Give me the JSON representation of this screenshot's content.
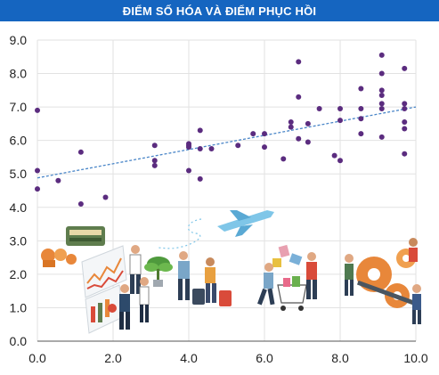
{
  "chart_data": {
    "type": "scatter",
    "title": "ĐIỂM SỐ HÓA VÀ ĐIỂM PHỤC HỒI",
    "xlabel": "",
    "ylabel": "",
    "xlim": [
      0,
      10
    ],
    "ylim": [
      0,
      9
    ],
    "x_ticks": [
      "0.0",
      "2.0",
      "4.0",
      "6.0",
      "8.0",
      "10.0"
    ],
    "y_ticks": [
      "0.0",
      "1.0",
      "2.0",
      "3.0",
      "4.0",
      "5.0",
      "6.0",
      "7.0",
      "8.0",
      "9.0"
    ],
    "grid": true,
    "trendline": {
      "style": "dashed",
      "color": "#4a86c8",
      "x": [
        0,
        10
      ],
      "y": [
        4.88,
        7.0
      ]
    },
    "series": [
      {
        "color": "#5b2c7f",
        "points": [
          [
            0.0,
            6.9
          ],
          [
            0.0,
            5.1
          ],
          [
            0.0,
            4.55
          ],
          [
            0.55,
            4.8
          ],
          [
            1.15,
            5.65
          ],
          [
            1.15,
            4.1
          ],
          [
            1.8,
            4.3
          ],
          [
            3.1,
            5.85
          ],
          [
            3.1,
            5.4
          ],
          [
            3.1,
            5.25
          ],
          [
            4.0,
            5.9
          ],
          [
            4.0,
            5.85
          ],
          [
            4.0,
            5.8
          ],
          [
            4.0,
            5.1
          ],
          [
            4.3,
            6.3
          ],
          [
            4.3,
            5.75
          ],
          [
            4.3,
            4.85
          ],
          [
            4.6,
            5.75
          ],
          [
            5.3,
            5.85
          ],
          [
            5.7,
            6.2
          ],
          [
            6.0,
            6.2
          ],
          [
            6.0,
            5.8
          ],
          [
            6.5,
            5.45
          ],
          [
            6.7,
            6.55
          ],
          [
            6.7,
            6.4
          ],
          [
            6.9,
            8.35
          ],
          [
            6.9,
            7.3
          ],
          [
            6.9,
            6.05
          ],
          [
            7.15,
            6.5
          ],
          [
            7.15,
            5.95
          ],
          [
            7.45,
            6.95
          ],
          [
            7.85,
            5.55
          ],
          [
            8.0,
            6.95
          ],
          [
            8.0,
            6.6
          ],
          [
            8.0,
            5.4
          ],
          [
            8.55,
            7.55
          ],
          [
            8.55,
            6.95
          ],
          [
            8.55,
            6.65
          ],
          [
            8.55,
            6.2
          ],
          [
            9.1,
            8.55
          ],
          [
            9.1,
            8.0
          ],
          [
            9.1,
            7.5
          ],
          [
            9.1,
            7.35
          ],
          [
            9.1,
            7.1
          ],
          [
            9.1,
            6.95
          ],
          [
            9.1,
            6.1
          ],
          [
            9.7,
            8.15
          ],
          [
            9.7,
            7.1
          ],
          [
            9.7,
            6.95
          ],
          [
            9.7,
            6.55
          ],
          [
            9.7,
            6.35
          ],
          [
            9.7,
            5.6
          ]
        ]
      }
    ]
  }
}
